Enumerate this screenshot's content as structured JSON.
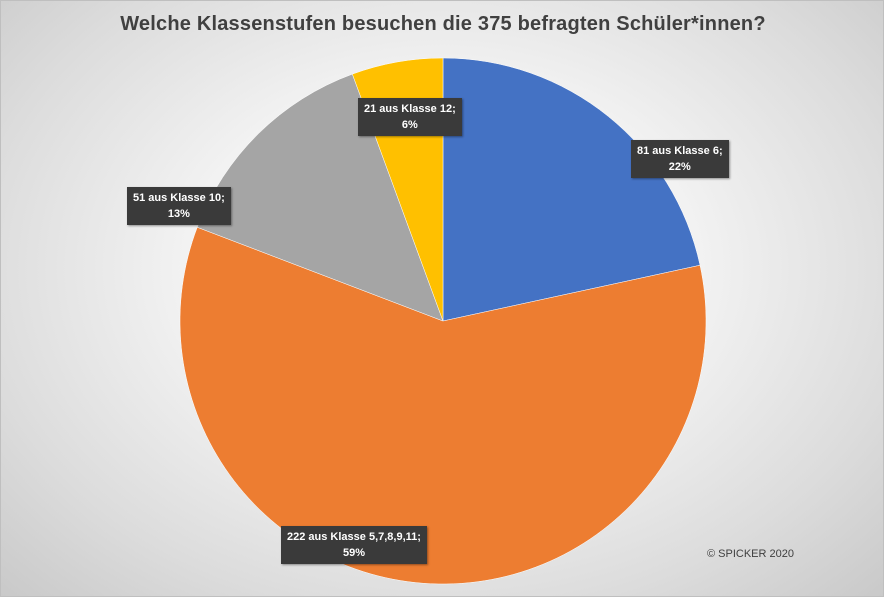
{
  "chart_data": {
    "type": "pie",
    "title": "Welche Klassenstufen besuchen die 375 befragten Schüler*innen?",
    "slices": [
      {
        "category": "Klasse 6",
        "value": 81,
        "percent": 22,
        "color": "#4472C4",
        "label_line1": "81 aus Klasse 6;",
        "label_line2": "22%"
      },
      {
        "category": "Klasse 5,7,8,9,11",
        "value": 222,
        "percent": 59,
        "color": "#ED7D31",
        "label_line1": "222 aus Klasse 5,7,8,9,11;",
        "label_line2": "59%"
      },
      {
        "category": "Klasse 10",
        "value": 51,
        "percent": 13,
        "color": "#A5A5A5",
        "label_line1": "51 aus Klasse 10;",
        "label_line2": "13%"
      },
      {
        "category": "Klasse 12",
        "value": 21,
        "percent": 6,
        "color": "#FFC000",
        "label_line1": "21 aus Klasse 12;",
        "label_line2": "6%"
      }
    ]
  },
  "credit": "© SPICKER 2020"
}
